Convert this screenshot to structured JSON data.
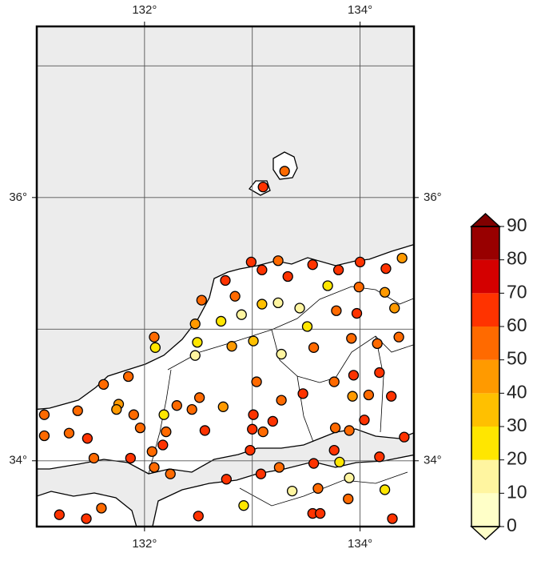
{
  "chart_data": {
    "type": "map",
    "xlim": [
      131,
      134.5
    ],
    "ylim": [
      33.5,
      37.3
    ],
    "xticks": [
      {
        "value": 132,
        "label": "132°"
      },
      {
        "value": 134,
        "label": "134°"
      }
    ],
    "yticks": [
      {
        "value": 34,
        "label": "34°"
      },
      {
        "value": 36,
        "label": "36°"
      }
    ],
    "grid_x": [
      132,
      133,
      134
    ],
    "grid_y": [
      34,
      35,
      36,
      37
    ],
    "stations": {
      "lon": [
        133.3,
        133.1,
        132.99,
        133.09,
        133.24,
        133.33,
        133.56,
        133.8,
        134.0,
        134.24,
        134.39,
        132.75,
        132.84,
        132.53,
        133.09,
        133.24,
        133.7,
        133.99,
        134.23,
        134.32,
        133.78,
        133.97,
        133.44,
        132.9,
        132.71,
        132.47,
        132.09,
        132.1,
        132.49,
        132.47,
        132.81,
        133.01,
        133.27,
        133.51,
        133.57,
        133.92,
        134.16,
        134.36,
        134.18,
        133.94,
        131.85,
        131.62,
        131.76,
        131.74,
        131.38,
        131.07,
        131.9,
        131.96,
        132.18,
        132.3,
        132.51,
        132.73,
        133.04,
        133.27,
        133.47,
        133.76,
        133.93,
        134.08,
        134.29,
        134.04,
        133.77,
        133.9,
        133.19,
        133.01,
        133.0,
        133.1,
        132.56,
        132.44,
        132.2,
        132.17,
        132.07,
        131.07,
        131.3,
        131.47,
        131.53,
        131.87,
        132.09,
        132.24,
        132.76,
        132.98,
        133.08,
        133.25,
        133.57,
        133.81,
        133.76,
        134.18,
        134.41,
        133.9,
        133.37,
        133.61,
        134.23,
        133.89,
        132.92,
        132.5,
        133.56,
        133.63,
        131.6,
        131.21,
        131.46,
        134.3
      ],
      "lat": [
        36.2,
        36.08,
        35.51,
        35.45,
        35.52,
        35.4,
        35.49,
        35.45,
        35.51,
        35.46,
        35.54,
        35.37,
        35.25,
        35.22,
        35.19,
        35.2,
        35.33,
        35.32,
        35.28,
        35.16,
        35.14,
        35.12,
        35.16,
        35.11,
        35.06,
        35.04,
        34.94,
        34.86,
        34.9,
        34.8,
        34.87,
        34.91,
        34.81,
        35.02,
        34.86,
        34.93,
        34.89,
        34.94,
        34.67,
        34.65,
        34.64,
        34.58,
        34.43,
        34.39,
        34.38,
        34.35,
        34.35,
        34.25,
        34.35,
        34.42,
        34.48,
        34.41,
        34.6,
        34.46,
        34.51,
        34.6,
        34.49,
        34.5,
        34.49,
        34.31,
        34.25,
        34.23,
        34.3,
        34.35,
        34.24,
        34.22,
        34.23,
        34.39,
        34.22,
        34.12,
        34.07,
        34.19,
        34.21,
        34.17,
        34.02,
        34.02,
        33.95,
        33.9,
        33.86,
        34.08,
        33.9,
        33.95,
        33.98,
        33.99,
        34.08,
        34.03,
        34.18,
        33.87,
        33.77,
        33.79,
        33.78,
        33.71,
        33.66,
        33.58,
        33.6,
        33.6,
        33.64,
        33.59,
        33.56,
        33.56
      ],
      "values": [
        55,
        65,
        65,
        65,
        55,
        65,
        65,
        65,
        65,
        65,
        45,
        65,
        55,
        55,
        35,
        15,
        25,
        55,
        45,
        45,
        55,
        65,
        15,
        15,
        25,
        45,
        55,
        25,
        25,
        15,
        45,
        35,
        15,
        25,
        55,
        55,
        55,
        55,
        65,
        65,
        55,
        55,
        45,
        45,
        55,
        55,
        55,
        55,
        25,
        55,
        55,
        45,
        55,
        55,
        65,
        55,
        45,
        55,
        65,
        65,
        55,
        55,
        65,
        65,
        65,
        55,
        65,
        55,
        55,
        65,
        55,
        55,
        55,
        65,
        55,
        65,
        55,
        55,
        65,
        65,
        65,
        55,
        65,
        25,
        65,
        65,
        65,
        15,
        15,
        55,
        25,
        55,
        25,
        65,
        65,
        65,
        55,
        65,
        65,
        65
      ]
    },
    "colorbar": {
      "lim": [
        0,
        90
      ],
      "ticks": [
        0,
        10,
        20,
        30,
        40,
        50,
        60,
        70,
        80,
        90
      ],
      "colors": [
        "#ffffc8",
        "#fff5a0",
        "#ffe600",
        "#ffc000",
        "#ff9a00",
        "#ff6a00",
        "#ff3300",
        "#d40000",
        "#980000"
      ],
      "under_color": "#ffffc8",
      "over_color": "#800000"
    }
  }
}
